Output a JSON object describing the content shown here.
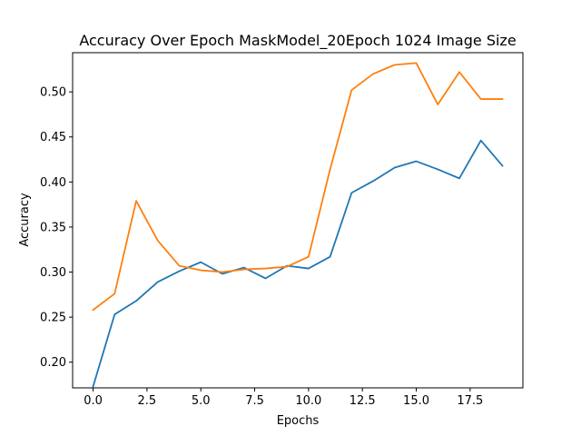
{
  "chart_data": {
    "type": "line",
    "title": "Accuracy Over Epoch MaskModel_20Epoch 1024 Image Size",
    "xlabel": "Epochs",
    "ylabel": "Accuracy",
    "xlim": [
      -0.95,
      19.95
    ],
    "ylim": [
      0.1715,
      0.5435
    ],
    "grid": false,
    "x": [
      0,
      1,
      2,
      3,
      4,
      5,
      6,
      7,
      8,
      9,
      10,
      11,
      12,
      13,
      14,
      15,
      16,
      17,
      18,
      19
    ],
    "xticks": [
      0.0,
      2.5,
      5.0,
      7.5,
      10.0,
      12.5,
      15.0,
      17.5
    ],
    "xtick_labels": [
      "0.0",
      "2.5",
      "5.0",
      "7.5",
      "10.0",
      "12.5",
      "15.0",
      "17.5"
    ],
    "yticks": [
      0.2,
      0.25,
      0.3,
      0.35,
      0.4,
      0.45,
      0.5
    ],
    "ytick_labels": [
      "0.20",
      "0.25",
      "0.30",
      "0.35",
      "0.40",
      "0.45",
      "0.50"
    ],
    "series": [
      {
        "color": "#1f77b4",
        "values": [
          0.173,
          0.253,
          0.268,
          0.289,
          0.301,
          0.311,
          0.298,
          0.305,
          0.293,
          0.307,
          0.304,
          0.317,
          0.388,
          0.401,
          0.416,
          0.423,
          0.414,
          0.404,
          0.446,
          0.418
        ]
      },
      {
        "color": "#ff7f0e",
        "values": [
          0.258,
          0.276,
          0.379,
          0.335,
          0.307,
          0.302,
          0.3,
          0.303,
          0.304,
          0.306,
          0.317,
          0.414,
          0.502,
          0.52,
          0.53,
          0.532,
          0.486,
          0.522,
          0.492,
          0.492
        ]
      }
    ]
  }
}
